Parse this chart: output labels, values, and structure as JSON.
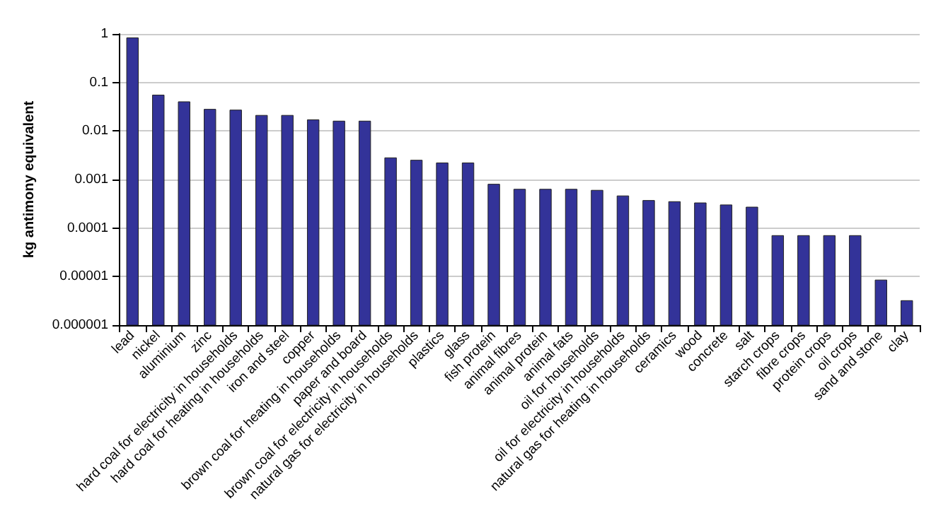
{
  "chart_data": {
    "type": "bar",
    "ylabel": "kg antimony equivalent",
    "categories": [
      "lead",
      "nickel",
      "aluminium",
      "zinc",
      "hard coal for electricity in households",
      "hard coal for heating in households",
      "iron and steel",
      "copper",
      "brown coal for heating in households",
      "paper and board",
      "brown coal for electricity in households",
      "natural gas for electricity in households",
      "plastics",
      "glass",
      "fish protein",
      "animal fibres",
      "animal protein",
      "animal fats",
      "oil for households",
      "oil for electricity in households",
      "natural gas for heating in households",
      "ceramics",
      "wood",
      "concrete",
      "salt",
      "starch crops",
      "fibre crops",
      "protein crops",
      "oil crops",
      "sand and stone",
      "clay"
    ],
    "values": [
      0.83,
      0.055,
      0.04,
      0.028,
      0.027,
      0.021,
      0.021,
      0.017,
      0.016,
      0.016,
      0.0028,
      0.0025,
      0.0022,
      0.0022,
      0.0008,
      0.00063,
      0.00063,
      0.00063,
      0.0006,
      0.00046,
      0.00037,
      0.00035,
      0.00033,
      0.0003,
      0.00027,
      7e-05,
      7e-05,
      7e-05,
      7e-05,
      8.5e-06,
      3.2e-06
    ],
    "color": "#333399",
    "log": true,
    "ylim": [
      1e-06,
      1
    ],
    "yticks": [
      {
        "value": 1e-06,
        "label": "0.000001"
      },
      {
        "value": 1e-05,
        "label": "0.00001"
      },
      0.0001,
      0.001,
      0.01,
      0.1,
      1
    ],
    "grid": "y"
  }
}
